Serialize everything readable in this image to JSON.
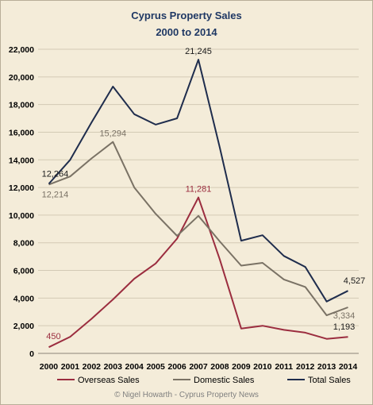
{
  "chart_data": {
    "type": "line",
    "title": [
      "Cyprus Property Sales",
      "2000 to 2014"
    ],
    "xlabel": "",
    "ylabel": "",
    "x": [
      "2000",
      "2001",
      "2002",
      "2003",
      "2004",
      "2005",
      "2006",
      "2007",
      "2008",
      "2009",
      "2010",
      "2011",
      "2012",
      "2013",
      "2014"
    ],
    "ylim": [
      0,
      22000
    ],
    "yticks": [
      0,
      2000,
      4000,
      6000,
      8000,
      10000,
      12000,
      14000,
      16000,
      18000,
      20000,
      22000
    ],
    "ytick_labels": [
      "0",
      "2,000",
      "4,000",
      "6,000",
      "8,000",
      "10,000",
      "12,000",
      "14,000",
      "16,000",
      "18,000",
      "20,000",
      "22,000"
    ],
    "grid": "horizontal",
    "legend_position": "bottom",
    "series": [
      {
        "name": "Overseas Sales",
        "color": "#9b2d3f",
        "values": [
          450,
          1200,
          2500,
          3900,
          5400,
          6500,
          8300,
          11281,
          6800,
          1800,
          2000,
          1700,
          1500,
          1050,
          1193
        ]
      },
      {
        "name": "Domestic Sales",
        "color": "#7a7265",
        "values": [
          12214,
          12800,
          14100,
          15294,
          12000,
          10100,
          8500,
          9950,
          8100,
          6350,
          6550,
          5350,
          4800,
          2750,
          3334
        ]
      },
      {
        "name": "Total Sales",
        "color": "#1f2d4d",
        "values": [
          12264,
          14000,
          16700,
          19300,
          17300,
          16550,
          17000,
          21245,
          14900,
          8150,
          8550,
          7050,
          6250,
          3750,
          4527
        ]
      }
    ],
    "annotations": [
      {
        "text": "12,264",
        "series": 2,
        "index": 0,
        "pos": "above-left"
      },
      {
        "text": "12,214",
        "series": 1,
        "index": 0,
        "pos": "below-left"
      },
      {
        "text": "15,294",
        "series": 1,
        "index": 3,
        "pos": "above"
      },
      {
        "text": "21,245",
        "series": 2,
        "index": 7,
        "pos": "above"
      },
      {
        "text": "11,281",
        "series": 0,
        "index": 7,
        "pos": "above"
      },
      {
        "text": "450",
        "series": 0,
        "index": 0,
        "pos": "above"
      },
      {
        "text": "4,527",
        "series": 2,
        "index": 14,
        "pos": "above-left"
      },
      {
        "text": "3,334",
        "series": 1,
        "index": 14,
        "pos": "below"
      },
      {
        "text": "1,193",
        "series": 0,
        "index": 14,
        "pos": "above"
      }
    ]
  },
  "footer": {
    "copyright": "© Nigel Howarth - Cyprus Property News"
  }
}
